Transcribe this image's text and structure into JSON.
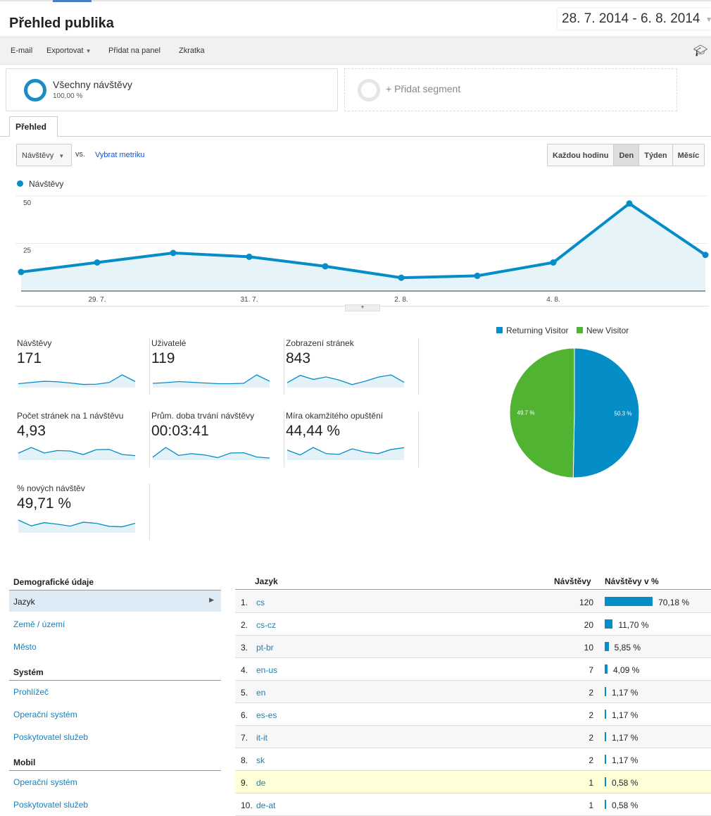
{
  "header": {
    "title": "Přehled publika",
    "date_range": "28. 7. 2014 - 6. 8. 2014"
  },
  "toolbar": {
    "email": "E-mail",
    "export": "Exportovat",
    "add_to_dashboard": "Přidat na panel",
    "shortcut": "Zkratka"
  },
  "segments": {
    "active_name": "Všechny návštěvy",
    "active_pct": "100,00 %",
    "add": "+ Přidat segment"
  },
  "tab": "Přehled",
  "controls": {
    "metric": "Návštěvy",
    "vs": "vs.",
    "pick_metric": "Vybrat metriku",
    "granularity": [
      "Každou hodinu",
      "Den",
      "Týden",
      "Měsíc"
    ],
    "selected_granularity": "Den"
  },
  "colors": {
    "accent": "#058dc7",
    "green": "#50b432",
    "highlight": "#ffffd8"
  },
  "chart_data": [
    {
      "type": "area",
      "title": "",
      "series": [
        {
          "name": "Návštěvy",
          "values": [
            10,
            15,
            20,
            18,
            13,
            7,
            8,
            15,
            46,
            19
          ]
        }
      ],
      "x": [
        "28. 7.",
        "29. 7.",
        "30. 7.",
        "31. 7.",
        "1. 8.",
        "2. 8.",
        "3. 8.",
        "4. 8.",
        "5. 8.",
        "6. 8."
      ],
      "xtick_labels": [
        "29. 7.",
        "31. 7.",
        "2. 8.",
        "4. 8."
      ],
      "ytick_labels": [
        "25",
        "50"
      ],
      "ylim": [
        0,
        50
      ],
      "grid": true,
      "legend": "top-left"
    },
    {
      "type": "pie",
      "categories": [
        "Returning Visitor",
        "New Visitor"
      ],
      "values": [
        50.3,
        49.7
      ],
      "labels": [
        "50.3 %",
        "49.7 %"
      ],
      "legend": "top"
    }
  ],
  "metrics": [
    {
      "label": "Návštěvy",
      "value": "171",
      "spark": [
        10,
        15,
        20,
        18,
        13,
        7,
        8,
        15,
        46,
        19
      ]
    },
    {
      "label": "Uživatelé",
      "value": "119",
      "spark": [
        8,
        10,
        13,
        11,
        9,
        7,
        7,
        8,
        32,
        14
      ]
    },
    {
      "label": "Zobrazení stránek",
      "value": "843",
      "spark": [
        15,
        48,
        30,
        41,
        27,
        7,
        22,
        40,
        50,
        17
      ]
    },
    {
      "label": "Počet stránek na 1 návštěvu",
      "value": "4,93",
      "spark": [
        25,
        51,
        26,
        37,
        35,
        19,
        41,
        42,
        19,
        14
      ]
    },
    {
      "label": "Prům. doba trvání návštěvy",
      "value": "00:03:41",
      "spark": [
        7,
        51,
        15,
        23,
        17,
        5,
        26,
        27,
        8,
        3
      ]
    },
    {
      "label": "Míra okamžitého opuštění",
      "value": "44,44 %",
      "spark": [
        39,
        17,
        51,
        23,
        20,
        45,
        30,
        23,
        42,
        50
      ]
    },
    {
      "label": "% nových návštěv",
      "value": "49,71 %",
      "spark": [
        52,
        25,
        40,
        33,
        24,
        42,
        37,
        23,
        21,
        37
      ]
    }
  ],
  "sidebar": {
    "demographics": "Demografické údaje",
    "language": "Jazyk",
    "country": "Země / území",
    "city": "Město",
    "system": "Systém",
    "browser": "Prohlížeč",
    "os": "Operační systém",
    "provider": "Poskytovatel služeb",
    "mobile": "Mobil",
    "mobile_os": "Operační systém",
    "mobile_provider": "Poskytovatel služeb"
  },
  "table": {
    "headers": {
      "dimension": "Jazyk",
      "visits": "Návštěvy",
      "visits_pct": "Návštěvy v %"
    },
    "rows": [
      {
        "rank": "1.",
        "lang": "cs",
        "visits": "120",
        "pct": "70,18 %",
        "frac": 0.7018
      },
      {
        "rank": "2.",
        "lang": "cs-cz",
        "visits": "20",
        "pct": "11,70 %",
        "frac": 0.117
      },
      {
        "rank": "3.",
        "lang": "pt-br",
        "visits": "10",
        "pct": "5,85 %",
        "frac": 0.0585
      },
      {
        "rank": "4.",
        "lang": "en-us",
        "visits": "7",
        "pct": "4,09 %",
        "frac": 0.0409
      },
      {
        "rank": "5.",
        "lang": "en",
        "visits": "2",
        "pct": "1,17 %",
        "frac": 0.0117
      },
      {
        "rank": "6.",
        "lang": "es-es",
        "visits": "2",
        "pct": "1,17 %",
        "frac": 0.0117
      },
      {
        "rank": "7.",
        "lang": "it-it",
        "visits": "2",
        "pct": "1,17 %",
        "frac": 0.0117
      },
      {
        "rank": "8.",
        "lang": "sk",
        "visits": "2",
        "pct": "1,17 %",
        "frac": 0.0117
      },
      {
        "rank": "9.",
        "lang": "de",
        "visits": "1",
        "pct": "0,58 %",
        "frac": 0.0058
      },
      {
        "rank": "10.",
        "lang": "de-at",
        "visits": "1",
        "pct": "0,58 %",
        "frac": 0.0058
      }
    ]
  }
}
